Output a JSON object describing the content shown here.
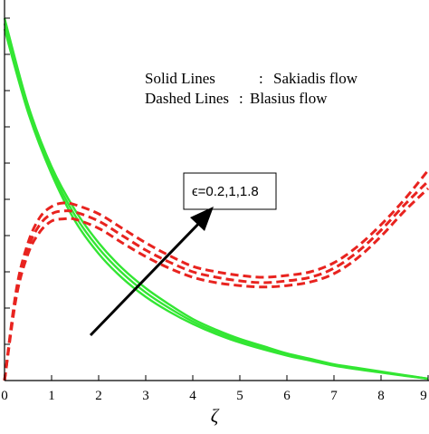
{
  "chart_data": {
    "type": "line",
    "title": "",
    "xlabel": "ζ",
    "ylabel": "",
    "xlim": [
      0,
      9
    ],
    "x_ticks": [
      0,
      1,
      2,
      3,
      4,
      5,
      6,
      7,
      8,
      9
    ],
    "x_tick_labels": [
      "0",
      "1",
      "2",
      "3",
      "4",
      "5",
      "6",
      "7",
      "8",
      "9"
    ],
    "grid": false,
    "legend_text": {
      "solid_key": "Solid Lines",
      "solid_sep": ":",
      "solid_value": "Sakiadis flow",
      "dashed_key": "Dashed Lines",
      "dashed_sep": ":",
      "dashed_value": "Blasius flow"
    },
    "parameter_label": "ϵ=0.2,1,1.8",
    "colors": {
      "sakiadis": "#33e633",
      "blasius": "#e8231f",
      "arrow": "#000000",
      "axis": "#000000"
    },
    "series": [
      {
        "style": "solid",
        "group": "Sakiadis flow",
        "x": [
          0,
          0.5,
          1,
          1.5,
          2,
          2.5,
          3,
          3.5,
          4,
          4.5,
          5,
          5.5,
          6,
          6.5,
          7,
          7.5,
          8,
          8.5,
          9
        ],
        "y": [
          1.0,
          0.76,
          0.59,
          0.47,
          0.38,
          0.31,
          0.255,
          0.21,
          0.17,
          0.14,
          0.115,
          0.095,
          0.075,
          0.06,
          0.045,
          0.035,
          0.025,
          0.015,
          0.005
        ]
      },
      {
        "style": "solid",
        "group": "Sakiadis flow",
        "x": [
          0,
          0.5,
          1,
          1.5,
          2,
          2.5,
          3,
          3.5,
          4,
          4.5,
          5,
          5.5,
          6,
          6.5,
          7,
          7.5,
          8,
          8.5,
          9
        ],
        "y": [
          0.985,
          0.75,
          0.58,
          0.455,
          0.365,
          0.297,
          0.243,
          0.2,
          0.163,
          0.134,
          0.11,
          0.09,
          0.072,
          0.057,
          0.043,
          0.033,
          0.023,
          0.014,
          0.005
        ]
      },
      {
        "style": "solid",
        "group": "Sakiadis flow",
        "x": [
          0,
          0.5,
          1,
          1.5,
          2,
          2.5,
          3,
          3.5,
          4,
          4.5,
          5,
          5.5,
          6,
          6.5,
          7,
          7.5,
          8,
          8.5,
          9
        ],
        "y": [
          0.97,
          0.74,
          0.57,
          0.44,
          0.35,
          0.283,
          0.231,
          0.19,
          0.156,
          0.128,
          0.105,
          0.086,
          0.069,
          0.055,
          0.041,
          0.031,
          0.022,
          0.013,
          0.005
        ]
      },
      {
        "style": "dashed",
        "group": "Blasius flow",
        "x": [
          0,
          0.25,
          0.5,
          0.75,
          1,
          1.25,
          1.5,
          2,
          2.5,
          3,
          3.5,
          4,
          4.5,
          5,
          5.5,
          6,
          6.5,
          7,
          7.5,
          8,
          8.5,
          9
        ],
        "y": [
          0.0,
          0.25,
          0.38,
          0.45,
          0.48,
          0.49,
          0.485,
          0.46,
          0.42,
          0.38,
          0.345,
          0.315,
          0.3,
          0.29,
          0.285,
          0.29,
          0.3,
          0.325,
          0.37,
          0.43,
          0.5,
          0.58
        ]
      },
      {
        "style": "dashed",
        "group": "Blasius flow",
        "x": [
          0,
          0.25,
          0.5,
          0.75,
          1,
          1.25,
          1.5,
          2,
          2.5,
          3,
          3.5,
          4,
          4.5,
          5,
          5.5,
          6,
          6.5,
          7,
          7.5,
          8,
          8.5,
          9
        ],
        "y": [
          0.0,
          0.24,
          0.365,
          0.43,
          0.46,
          0.468,
          0.465,
          0.44,
          0.4,
          0.36,
          0.327,
          0.3,
          0.285,
          0.275,
          0.27,
          0.275,
          0.285,
          0.31,
          0.355,
          0.415,
          0.485,
          0.55
        ]
      },
      {
        "style": "dashed",
        "group": "Blasius flow",
        "x": [
          0,
          0.25,
          0.5,
          0.75,
          1,
          1.25,
          1.5,
          2,
          2.5,
          3,
          3.5,
          4,
          4.5,
          5,
          5.5,
          6,
          6.5,
          7,
          7.5,
          8,
          8.5,
          9
        ],
        "y": [
          0.0,
          0.23,
          0.35,
          0.41,
          0.44,
          0.446,
          0.445,
          0.42,
          0.38,
          0.342,
          0.31,
          0.285,
          0.27,
          0.262,
          0.258,
          0.262,
          0.272,
          0.295,
          0.338,
          0.398,
          0.468,
          0.53
        ]
      }
    ]
  }
}
